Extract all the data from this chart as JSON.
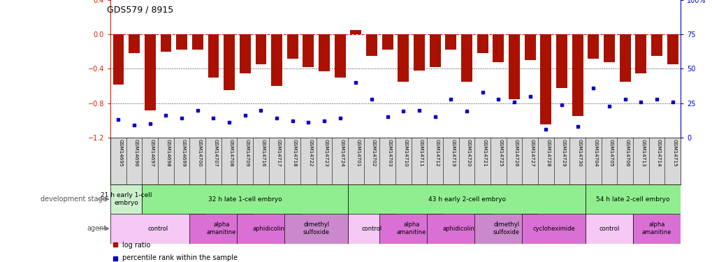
{
  "title": "GDS579 / 8915",
  "samples": [
    "GSM14695",
    "GSM14696",
    "GSM14697",
    "GSM14698",
    "GSM14699",
    "GSM14700",
    "GSM14707",
    "GSM14708",
    "GSM14709",
    "GSM14716",
    "GSM14717",
    "GSM14718",
    "GSM14722",
    "GSM14723",
    "GSM14724",
    "GSM14701",
    "GSM14702",
    "GSM14703",
    "GSM14710",
    "GSM14711",
    "GSM14712",
    "GSM14719",
    "GSM14720",
    "GSM14721",
    "GSM14725",
    "GSM14726",
    "GSM14727",
    "GSM14728",
    "GSM14729",
    "GSM14730",
    "GSM14704",
    "GSM14705",
    "GSM14706",
    "GSM14713",
    "GSM14714",
    "GSM14715"
  ],
  "log_ratio": [
    -0.58,
    -0.22,
    -0.88,
    -0.2,
    -0.18,
    -0.18,
    -0.5,
    -0.65,
    -0.45,
    -0.35,
    -0.6,
    -0.28,
    -0.38,
    -0.43,
    -0.5,
    0.05,
    -0.25,
    -0.18,
    -0.55,
    -0.42,
    -0.38,
    -0.18,
    -0.55,
    -0.22,
    -0.32,
    -0.75,
    -0.3,
    -1.05,
    -0.62,
    -0.95,
    -0.28,
    -0.32,
    -0.55,
    -0.45,
    -0.25,
    -0.35
  ],
  "percentile": [
    13,
    9,
    10,
    16,
    14,
    20,
    14,
    11,
    16,
    20,
    14,
    12,
    11,
    12,
    14,
    40,
    28,
    15,
    19,
    20,
    15,
    28,
    19,
    33,
    28,
    26,
    30,
    6,
    24,
    8,
    36,
    23,
    28,
    26,
    28,
    26
  ],
  "ylim_left": [
    -1.2,
    0.4
  ],
  "ylim_right": [
    0,
    100
  ],
  "yticks_left": [
    -1.2,
    -0.8,
    -0.4,
    0,
    0.4
  ],
  "yticks_right": [
    0,
    25,
    50,
    75,
    100
  ],
  "ytick_right_labels": [
    "0",
    "25",
    "50",
    "75",
    "100%"
  ],
  "hlines_dotted": [
    -0.4,
    -0.8
  ],
  "dev_stages": [
    {
      "label": "21 h early 1-cell\nembryо",
      "start": 0,
      "end": 1,
      "color": "#ccf0cc"
    },
    {
      "label": "32 h late 1-cell embryo",
      "start": 2,
      "end": 14,
      "color": "#90ee90"
    },
    {
      "label": "43 h early 2-cell embryo",
      "start": 15,
      "end": 29,
      "color": "#90ee90"
    },
    {
      "label": "54 h late 2-cell embryo",
      "start": 30,
      "end": 35,
      "color": "#90ee90"
    }
  ],
  "agents": [
    {
      "label": "control",
      "start": 0,
      "end": 5,
      "color": "#f5c8f5"
    },
    {
      "label": "alpha\namanitine",
      "start": 5,
      "end": 8,
      "color": "#da70d6"
    },
    {
      "label": "aphidicolin",
      "start": 8,
      "end": 11,
      "color": "#da70d6"
    },
    {
      "label": "dimethyl\nsulfoxide",
      "start": 11,
      "end": 14,
      "color": "#cc88cc"
    },
    {
      "label": "control",
      "start": 15,
      "end": 17,
      "color": "#f5c8f5"
    },
    {
      "label": "alpha\namanitine",
      "start": 17,
      "end": 20,
      "color": "#da70d6"
    },
    {
      "label": "aphidicolin",
      "start": 20,
      "end": 23,
      "color": "#da70d6"
    },
    {
      "label": "dimethyl\nsulfoxide",
      "start": 23,
      "end": 26,
      "color": "#cc88cc"
    },
    {
      "label": "cycloheximide",
      "start": 26,
      "end": 29,
      "color": "#da70d6"
    },
    {
      "label": "control",
      "start": 30,
      "end": 32,
      "color": "#f5c8f5"
    },
    {
      "label": "alpha\namanitine",
      "start": 33,
      "end": 35,
      "color": "#da70d6"
    }
  ],
  "bar_color": "#aa1100",
  "dot_color": "#0000cc",
  "hline0_color": "#cc2200",
  "hline0_style": "--",
  "dotted_color": "#333333",
  "xtick_bg": "#d8d8d8",
  "bg_color": "#ffffff",
  "left_axis_color": "#cc2200",
  "right_axis_color": "#0000cc"
}
